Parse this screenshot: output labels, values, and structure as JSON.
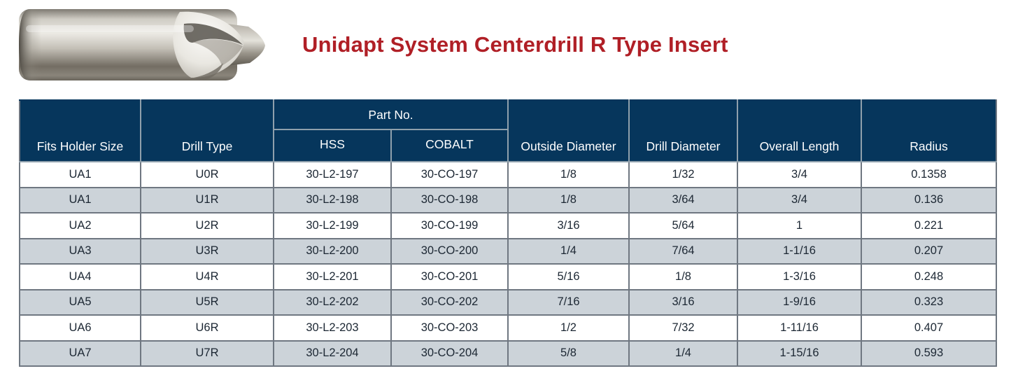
{
  "title": "Unidapt System Centerdrill R Type Insert",
  "product_image": {
    "name": "centerdrill-r-type-insert-photo"
  },
  "table": {
    "part_no_group_label": "Part No.",
    "columns": [
      "Fits Holder Size",
      "Drill Type",
      "HSS",
      "COBALT",
      "Outside Diameter",
      "Drill Diameter",
      "Overall Length",
      "Radius"
    ],
    "rows": [
      [
        "UA1",
        "U0R",
        "30-L2-197",
        "30-CO-197",
        "1/8",
        "1/32",
        "3/4",
        "0.1358"
      ],
      [
        "UA1",
        "U1R",
        "30-L2-198",
        "30-CO-198",
        "1/8",
        "3/64",
        "3/4",
        "0.136"
      ],
      [
        "UA2",
        "U2R",
        "30-L2-199",
        "30-CO-199",
        "3/16",
        "5/64",
        "1",
        "0.221"
      ],
      [
        "UA3",
        "U3R",
        "30-L2-200",
        "30-CO-200",
        "1/4",
        "7/64",
        "1-1/16",
        "0.207"
      ],
      [
        "UA4",
        "U4R",
        "30-L2-201",
        "30-CO-201",
        "5/16",
        "1/8",
        "1-3/16",
        "0.248"
      ],
      [
        "UA5",
        "U5R",
        "30-L2-202",
        "30-CO-202",
        "7/16",
        "3/16",
        "1-9/16",
        "0.323"
      ],
      [
        "UA6",
        "U6R",
        "30-L2-203",
        "30-CO-203",
        "1/2",
        "7/32",
        "1-11/16",
        "0.407"
      ],
      [
        "UA7",
        "U7R",
        "30-L2-204",
        "30-CO-204",
        "5/8",
        "1/4",
        "1-15/16",
        "0.593"
      ]
    ]
  },
  "colors": {
    "title_red": "#b01f26",
    "header_navy": "#06365c",
    "alt_row_gray": "#ccd3d9",
    "grid_border": "#6f7781",
    "header_divider": "#8fa0ac",
    "body_text": "#1c2733"
  }
}
